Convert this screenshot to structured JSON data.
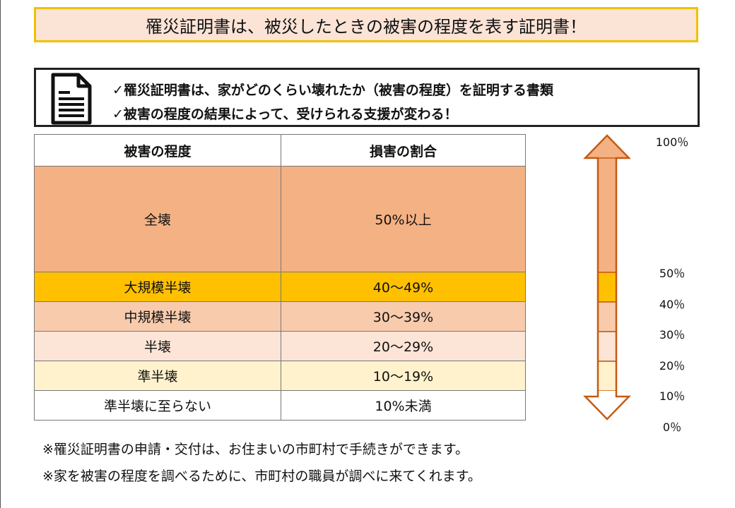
{
  "title": "罹災証明書は、被災したときの被害の程度を表す証明書！",
  "info": {
    "line1": "✓罹災証明書は、家がどのくらい壊れたか（被害の程度）を証明する書類",
    "line2": "✓被害の程度の結果によって、受けられる支援が変わる！",
    "icon": "document-icon"
  },
  "table": {
    "headers": [
      "被害の程度",
      "損害の割合"
    ],
    "rows": [
      {
        "level": "全壊",
        "ratio": "50%以上",
        "color": "#f4b183"
      },
      {
        "level": "大規模半壊",
        "ratio": "40～49%",
        "color": "#ffc000"
      },
      {
        "level": "中規模半壊",
        "ratio": "30～39%",
        "color": "#f8cbad"
      },
      {
        "level": "半壊",
        "ratio": "20～29%",
        "color": "#fce4d6"
      },
      {
        "level": "準半壊",
        "ratio": "10～19%",
        "color": "#fff2cc"
      },
      {
        "level": "準半壊に至らない",
        "ratio": "10%未満",
        "color": "#ffffff"
      }
    ]
  },
  "scale": {
    "labels": [
      "100％",
      "50％",
      "40％",
      "30％",
      "20％",
      "10％",
      "0％"
    ],
    "arrow_colors": [
      "#f4b183",
      "#ffc000",
      "#f8cbad",
      "#fce4d6",
      "#fff2cc",
      "#ffffff"
    ],
    "stroke": "#c55a11"
  },
  "notes": {
    "note1": "※罹災証明書の申請・交付は、お住まいの市町村で手続きができます。",
    "note2": "※家を被害の程度を調べるために、市町村の職員が調べに来てくれます。"
  }
}
